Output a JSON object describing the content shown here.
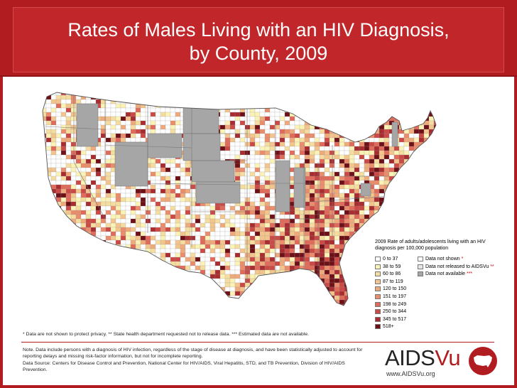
{
  "title": {
    "line1": "Rates of Males Living with an HIV Diagnosis,",
    "line2": "by County, 2009"
  },
  "legend": {
    "title": "2009 Rate of adults/adolescents living with an HIV diagnosis per 100,000 population",
    "items": [
      {
        "label": "0 to 37",
        "color": "#ffffff"
      },
      {
        "label": "38 to 59",
        "color": "#fbf3b5"
      },
      {
        "label": "60 to 86",
        "color": "#f5dda0"
      },
      {
        "label": "87 to 119",
        "color": "#f3c58c"
      },
      {
        "label": "120 to 150",
        "color": "#efaa7c"
      },
      {
        "label": "151 to 197",
        "color": "#ea8d6c"
      },
      {
        "label": "198 to 249",
        "color": "#e06b5a"
      },
      {
        "label": "250 to 344",
        "color": "#cc4a45"
      },
      {
        "label": "345 to 517",
        "color": "#a82c30"
      },
      {
        "label": "518+",
        "color": "#6e1018"
      }
    ],
    "special": [
      {
        "label": "Data not shown",
        "stars": "*",
        "color": "#ffffff"
      },
      {
        "label": "Data not released to AIDSVu",
        "stars": "**",
        "color": "#e6e6e6"
      },
      {
        "label": "Data not available",
        "stars": "***",
        "color": "#a6a6a6"
      }
    ]
  },
  "footnote": "* Data are not shown to protect privacy.  ** State health department requested not to release data.  *** Estimated data are not available.",
  "note": "Note. Data include persons with a diagnosis of HIV infection, regardless of the stage of disease at diagnosis, and have been statistically adjusted to account for reporting delays and missing risk-factor information, but not for incomplete reporting.",
  "source": "Data Source: Centers for Disease Control and Prevention, National Center for HIV/AIDS, Viral Hepatitis, STD, and TB Prevention, Division of HIV/AIDS Prevention.",
  "logo": {
    "name_part1": "AIDS",
    "name_part2": "Vu",
    "url": "www.AIDSVu.org",
    "brand_color": "#b01c20"
  }
}
